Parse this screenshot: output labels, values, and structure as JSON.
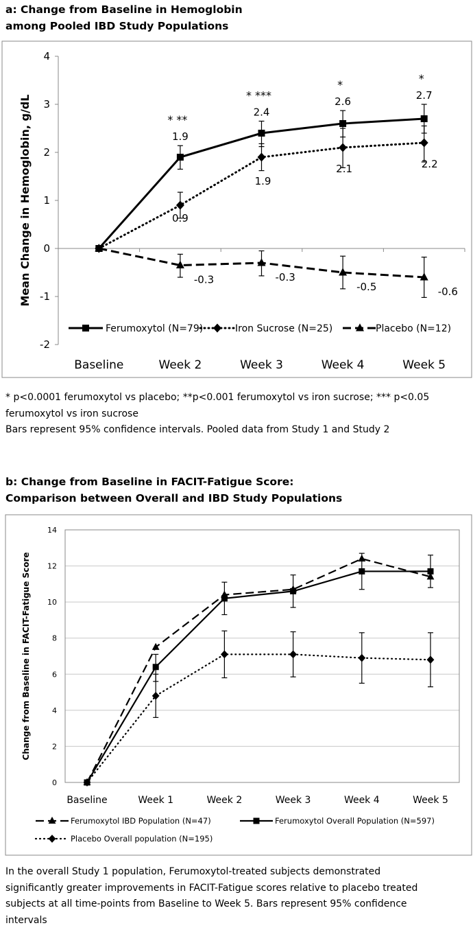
{
  "panel_a": {
    "title_line1": "a: Change from Baseline in Hemoglobin",
    "title_line2": "among Pooled IBD Study Populations",
    "notes": [
      "* p<0.0001 ferumoxytol vs placebo; **p<0.001 ferumoxytol vs iron sucrose; *** p<0.05",
      "ferumoxytol vs iron sucrose",
      "Bars represent 95% confidence intervals. Pooled data from Study 1 and Study 2"
    ]
  },
  "panel_b": {
    "title_line1": "b: Change from Baseline in FACIT-Fatigue Score:",
    "title_line2": "Comparison between Overall and IBD Study Populations",
    "notes": [
      "In the overall Study 1 population, Ferumoxytol-treated subjects demonstrated",
      "significantly greater improvements in FACIT-Fatigue scores relative to placebo treated",
      "subjects at all time-points from Baseline to Week 5. Bars represent 95% confidence",
      "intervals"
    ]
  },
  "chart_data": [
    {
      "type": "line",
      "title": "a: Change from Baseline in Hemoglobin among Pooled IBD Study Populations",
      "categories": [
        "Baseline",
        "Week 2",
        "Week 3",
        "Week 4",
        "Week 5"
      ],
      "ylabel": "Mean Change in Hemoglobin, g/dL",
      "ylim": [
        -2,
        4
      ],
      "yticks": [
        -2,
        -1,
        0,
        1,
        2,
        3,
        4
      ],
      "grid": false,
      "legend": "bottom-inside",
      "series": [
        {
          "name": "Ferumoxytol (N=79)",
          "style": "solid",
          "marker": "square",
          "values": [
            0,
            1.9,
            2.4,
            2.6,
            2.7
          ],
          "ci_low": [
            0,
            1.65,
            2.12,
            2.32,
            2.4
          ],
          "ci_high": [
            0,
            2.14,
            2.65,
            2.87,
            3.0
          ],
          "labels": [
            "",
            "1.9",
            "2.4",
            "2.6",
            "2.7"
          ],
          "significance": [
            "",
            "*   **",
            "*   ***",
            "*",
            "*"
          ]
        },
        {
          "name": "Iron Sucrose (N=25)",
          "style": "dotted",
          "marker": "diamond",
          "values": [
            0,
            0.9,
            1.9,
            2.1,
            2.2
          ],
          "ci_low": [
            0,
            0.63,
            1.62,
            1.68,
            1.8
          ],
          "ci_high": [
            0,
            1.17,
            2.18,
            2.5,
            2.55
          ],
          "labels": [
            "",
            "0.9",
            "1.9",
            "2.1",
            "2.2"
          ]
        },
        {
          "name": "Placebo (N=12)",
          "style": "dashed",
          "marker": "triangle",
          "values": [
            0,
            -0.35,
            -0.3,
            -0.5,
            -0.6
          ],
          "ci_low": [
            0,
            -0.6,
            -0.57,
            -0.84,
            -1.02
          ],
          "ci_high": [
            0,
            -0.12,
            -0.05,
            -0.16,
            -0.18
          ],
          "labels": [
            "",
            "-0.3",
            "-0.3",
            "-0.5",
            "-0.6"
          ]
        }
      ]
    },
    {
      "type": "line",
      "title": "b: Change from Baseline in FACIT-Fatigue Score: Comparison between Overall and IBD Study Populations",
      "categories": [
        "Baseline",
        "Week 1",
        "Week 2",
        "Week 3",
        "Week 4",
        "Week 5"
      ],
      "ylabel": "Change from Baseline in FACIT-Fatigue Score",
      "ylim": [
        0,
        14
      ],
      "yticks": [
        0,
        2,
        4,
        6,
        8,
        10,
        12,
        14
      ],
      "grid": true,
      "legend": "bottom",
      "series": [
        {
          "name": "Ferumoxytol IBD Population (N=47)",
          "style": "dashed",
          "marker": "triangle",
          "values": [
            0,
            7.5,
            10.4,
            10.7,
            12.4,
            11.4
          ]
        },
        {
          "name": "Ferumoxytol Overall Population (N=597)",
          "style": "solid",
          "marker": "square",
          "values": [
            0,
            6.4,
            10.2,
            10.6,
            11.7,
            11.7
          ],
          "ci_low": [
            0,
            5.6,
            9.3,
            9.7,
            10.7,
            10.8
          ],
          "ci_high": [
            0,
            7.1,
            11.1,
            11.5,
            12.7,
            12.6
          ]
        },
        {
          "name": "Placebo Overall population (N=195)",
          "style": "dotted",
          "marker": "diamond",
          "values": [
            0,
            4.8,
            7.1,
            7.1,
            6.9,
            6.8
          ],
          "ci_low": [
            0,
            3.6,
            5.8,
            5.85,
            5.5,
            5.3
          ],
          "ci_high": [
            0,
            6.0,
            8.4,
            8.35,
            8.3,
            8.3
          ]
        }
      ]
    }
  ]
}
